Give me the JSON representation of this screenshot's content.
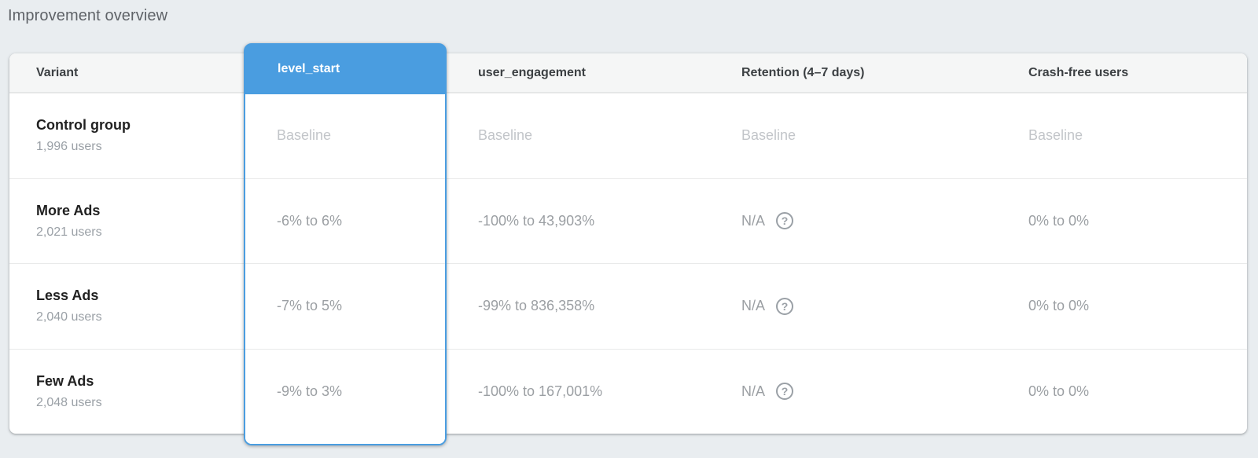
{
  "page": {
    "title": "Improvement overview",
    "background_color": "#e9edf0",
    "accent_color": "#4a9de0"
  },
  "table": {
    "selected_metric": "level_start",
    "columns": {
      "variant": "Variant",
      "level_start": "level_start",
      "user_engagement": "user_engagement",
      "retention": "Retention (4–7 days)",
      "crash_free": "Crash-free users"
    },
    "help_icon_glyph": "?",
    "rows": [
      {
        "variant": "Control group",
        "users": "1,996 users",
        "level_start": "Baseline",
        "user_engagement": "Baseline",
        "retention": "Baseline",
        "retention_help": false,
        "crash_free": "Baseline",
        "baseline": true
      },
      {
        "variant": "More Ads",
        "users": "2,021 users",
        "level_start": "-6% to 6%",
        "user_engagement": "-100% to 43,903%",
        "retention": "N/A",
        "retention_help": true,
        "crash_free": "0% to 0%",
        "baseline": false
      },
      {
        "variant": "Less Ads",
        "users": "2,040 users",
        "level_start": "-7% to 5%",
        "user_engagement": "-99% to 836,358%",
        "retention": "N/A",
        "retention_help": true,
        "crash_free": "0% to 0%",
        "baseline": false
      },
      {
        "variant": "Few Ads",
        "users": "2,048 users",
        "level_start": "-9% to 3%",
        "user_engagement": "-100% to 167,001%",
        "retention": "N/A",
        "retention_help": true,
        "crash_free": "0% to 0%",
        "baseline": false
      }
    ]
  }
}
